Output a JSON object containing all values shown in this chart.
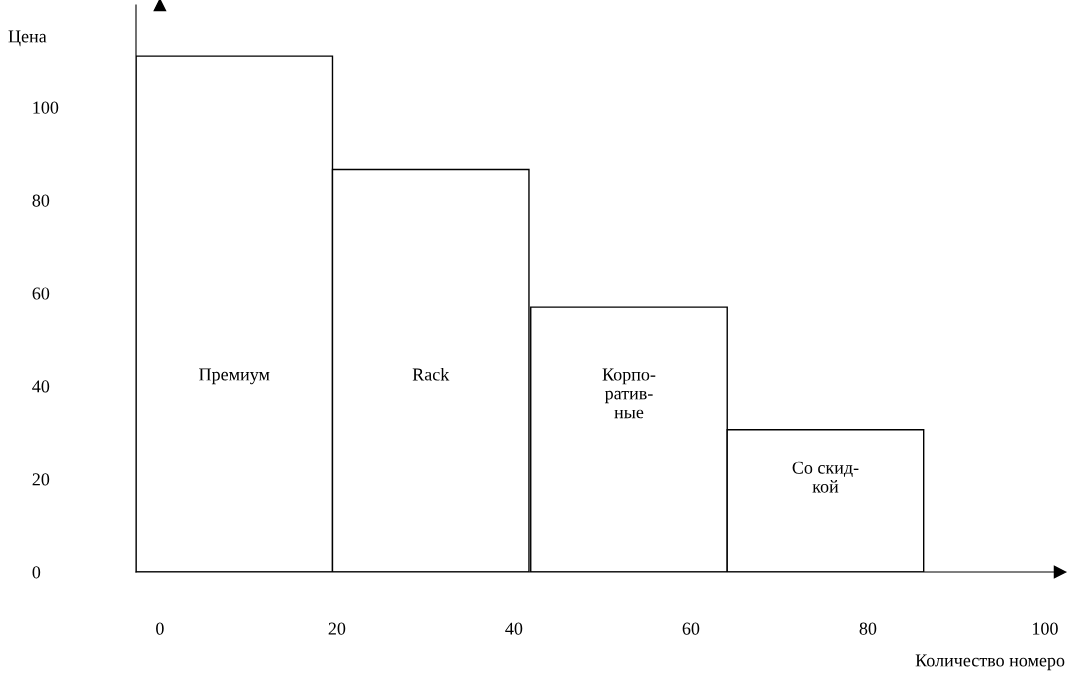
{
  "chart_data": {
    "type": "bar",
    "x": [
      8.4,
      30.6,
      53.0,
      75.2
    ],
    "values": [
      111,
      86.6,
      57,
      30.6
    ],
    "color": "#ffffff",
    "ylabel": "Цена",
    "xlabel": "Количество номеро",
    "annotations": [
      "Премиум",
      "Rack",
      "Корпо-\nратив-\nные",
      "Со скид-\nкой"
    ],
    "xlim": [
      -2.7,
      101.7
    ],
    "xticks": [
      0,
      20,
      40,
      60,
      80,
      100
    ],
    "ylim": [
      0,
      122
    ],
    "yticks": [
      0,
      20,
      40,
      60,
      80,
      100
    ],
    "grid": false,
    "legend": false
  }
}
